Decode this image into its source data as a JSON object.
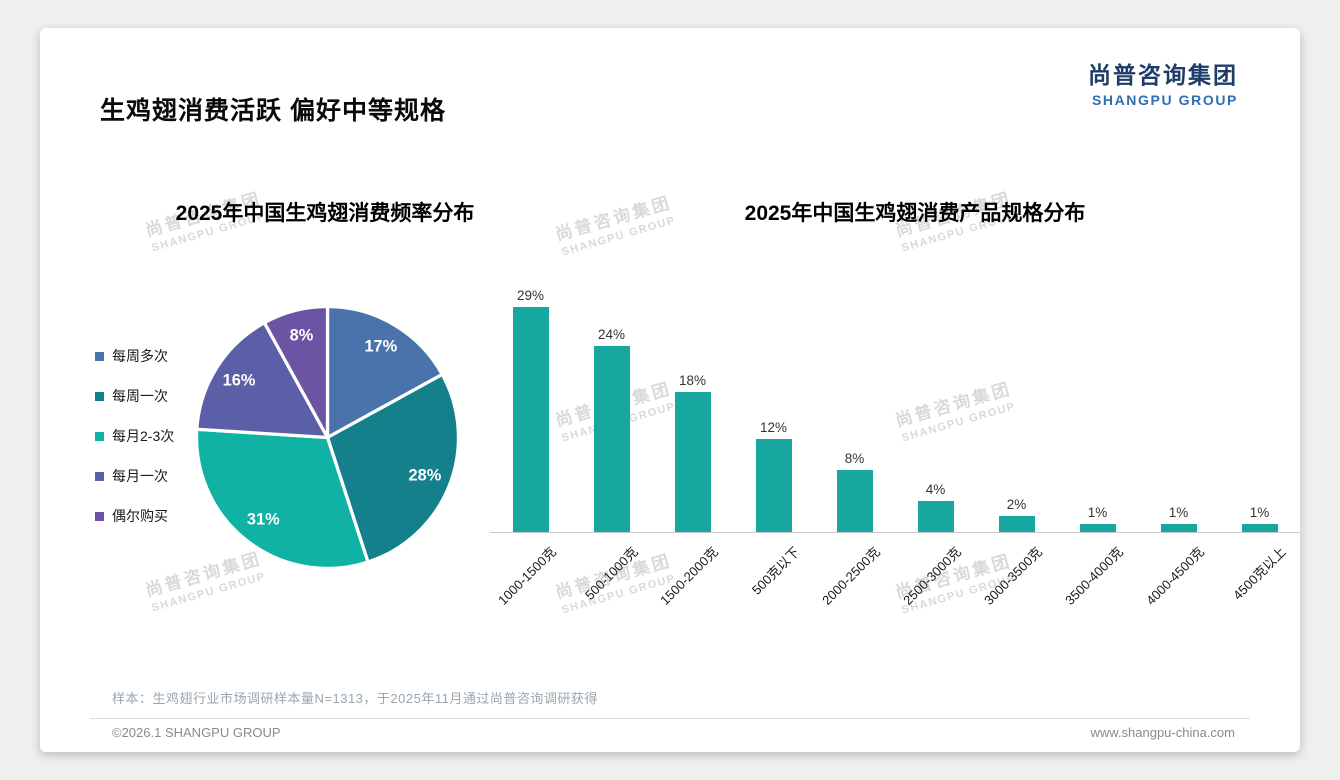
{
  "page": {
    "background_color": "#efefef",
    "title": "生鸡翅消费活跃 偏好中等规格",
    "logo": {
      "cn": "尚普咨询集团",
      "en": "SHANGPU GROUP"
    },
    "sample_note": "样本：生鸡翅行业市场调研样本量N=1313，于2025年11月通过尚普咨询调研获得",
    "copyright": "©2026.1 SHANGPU GROUP",
    "website": "www.shangpu-china.com",
    "watermark": {
      "cn": "尚普咨询集团",
      "en": "SHANGPU GROUP"
    }
  },
  "chart_data": [
    {
      "type": "pie",
      "title": "2025年中国生鸡翅消费频率分布",
      "labels": [
        "每周多次",
        "每周一次",
        "每月2-3次",
        "每月一次",
        "偶尔购买"
      ],
      "values": [
        17,
        28,
        31,
        16,
        8
      ],
      "unit": "%",
      "colors": [
        "#4a73ab",
        "#14808c",
        "#10b2a4",
        "#5a5fa8",
        "#6c54a5"
      ],
      "legend_position": "left",
      "start_angle_deg": -90,
      "direction": "clockwise",
      "slice_label_color": "#ffffff"
    },
    {
      "type": "bar",
      "title": "2025年中国生鸡翅消费产品规格分布",
      "categories": [
        "1000-1500克",
        "500-1000克",
        "1500-2000克",
        "500克以下",
        "2000-2500克",
        "2500-3000克",
        "3000-3500克",
        "3500-4000克",
        "4000-4500克",
        "4500克以上"
      ],
      "values": [
        29,
        24,
        18,
        12,
        8,
        4,
        2,
        1,
        1,
        1
      ],
      "unit": "%",
      "bar_color": "#16a8a0",
      "ylim": [
        0,
        32
      ],
      "grid": false,
      "value_labels": true
    }
  ]
}
